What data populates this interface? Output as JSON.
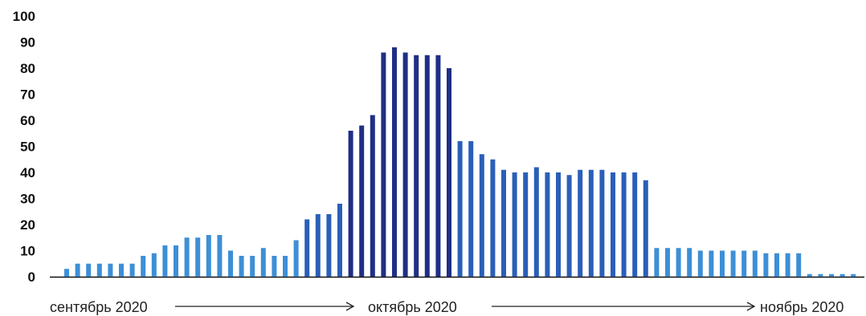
{
  "chart_data": {
    "type": "bar",
    "ylim": [
      0,
      100
    ],
    "yticks": [
      0,
      10,
      20,
      30,
      40,
      50,
      60,
      70,
      80,
      90,
      100
    ],
    "grid": false,
    "legend": "none",
    "x_labels": [
      "сентябрь 2020",
      "октябрь 2020",
      "ноябрь 2020"
    ],
    "colors": {
      "light": "#3d8fd6",
      "mid": "#2a5fb8",
      "dark": "#1f2f86",
      "axis": "#111111"
    },
    "values": [
      3,
      5,
      5,
      5,
      5,
      5,
      5,
      8,
      9,
      12,
      12,
      15,
      15,
      16,
      16,
      10,
      8,
      8,
      11,
      8,
      8,
      14,
      22,
      24,
      24,
      28,
      56,
      58,
      62,
      86,
      88,
      86,
      85,
      85,
      85,
      80,
      52,
      52,
      47,
      45,
      41,
      40,
      40,
      42,
      40,
      40,
      39,
      41,
      41,
      41,
      40,
      40,
      40,
      37,
      11,
      11,
      11,
      11,
      10,
      10,
      10,
      10,
      10,
      10,
      9,
      9,
      9,
      9,
      1,
      1,
      1,
      1,
      1
    ]
  }
}
